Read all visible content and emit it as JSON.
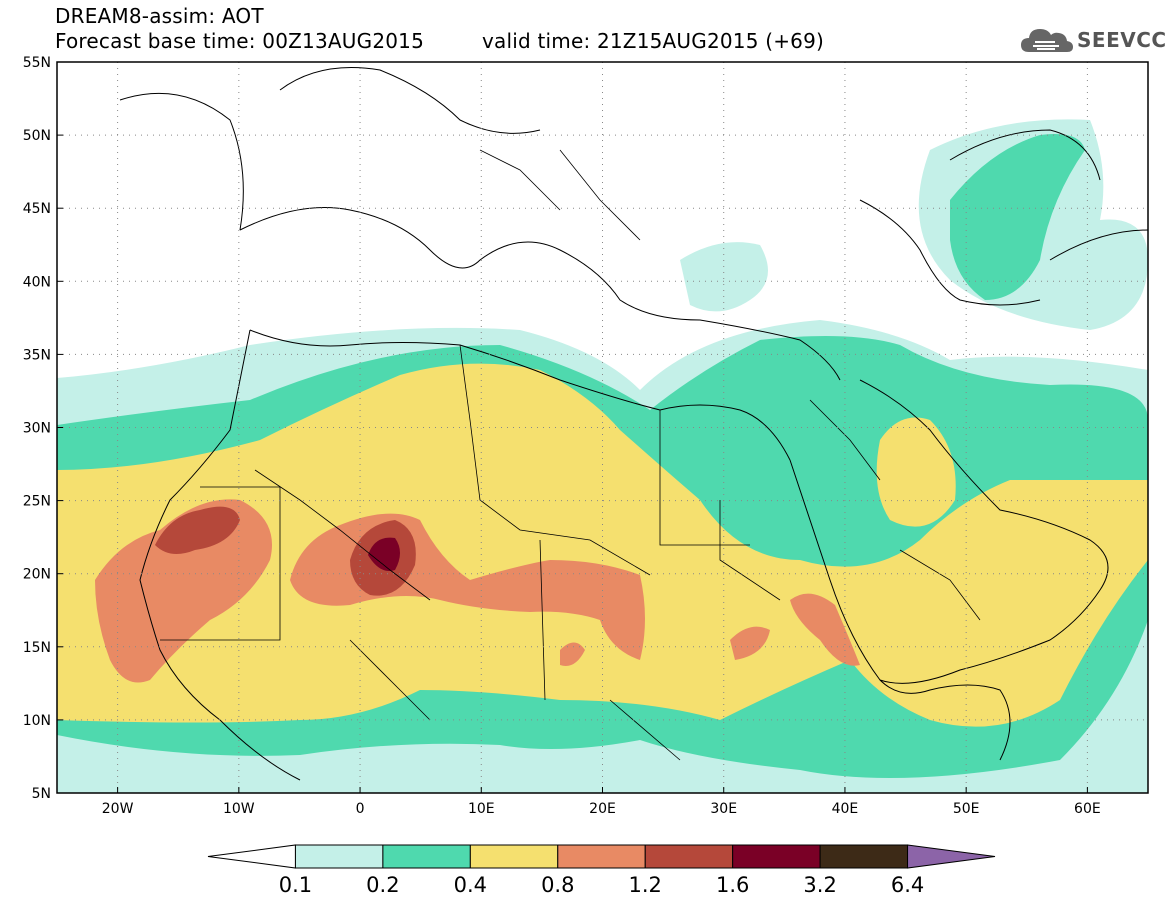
{
  "header": {
    "title_line1": "DREAM8-assim: AOT",
    "base_time_label": "Forecast base time: 00Z13AUG2015",
    "valid_time_label": "valid time: 21Z15AUG2015 (+69)",
    "logo_text": "SEEVCCC"
  },
  "map": {
    "lat_labels": [
      "55N",
      "50N",
      "45N",
      "40N",
      "35N",
      "30N",
      "25N",
      "20N",
      "15N",
      "10N",
      "5N"
    ],
    "lon_labels": [
      "20W",
      "10W",
      "0",
      "10E",
      "20E",
      "30E",
      "40E",
      "50E",
      "60E"
    ],
    "lon_range": [
      -25,
      65
    ],
    "lat_range": [
      5,
      55
    ]
  },
  "legend": {
    "ticks": [
      "0.1",
      "0.2",
      "0.4",
      "0.8",
      "1.2",
      "1.6",
      "3.2",
      "6.4"
    ],
    "colors": [
      "#ffffff",
      "#c4f0e8",
      "#4fd9ae",
      "#f5e06f",
      "#e88a64",
      "#b5483a",
      "#7a0026",
      "#3d2a17",
      "#8c64a8"
    ]
  }
}
